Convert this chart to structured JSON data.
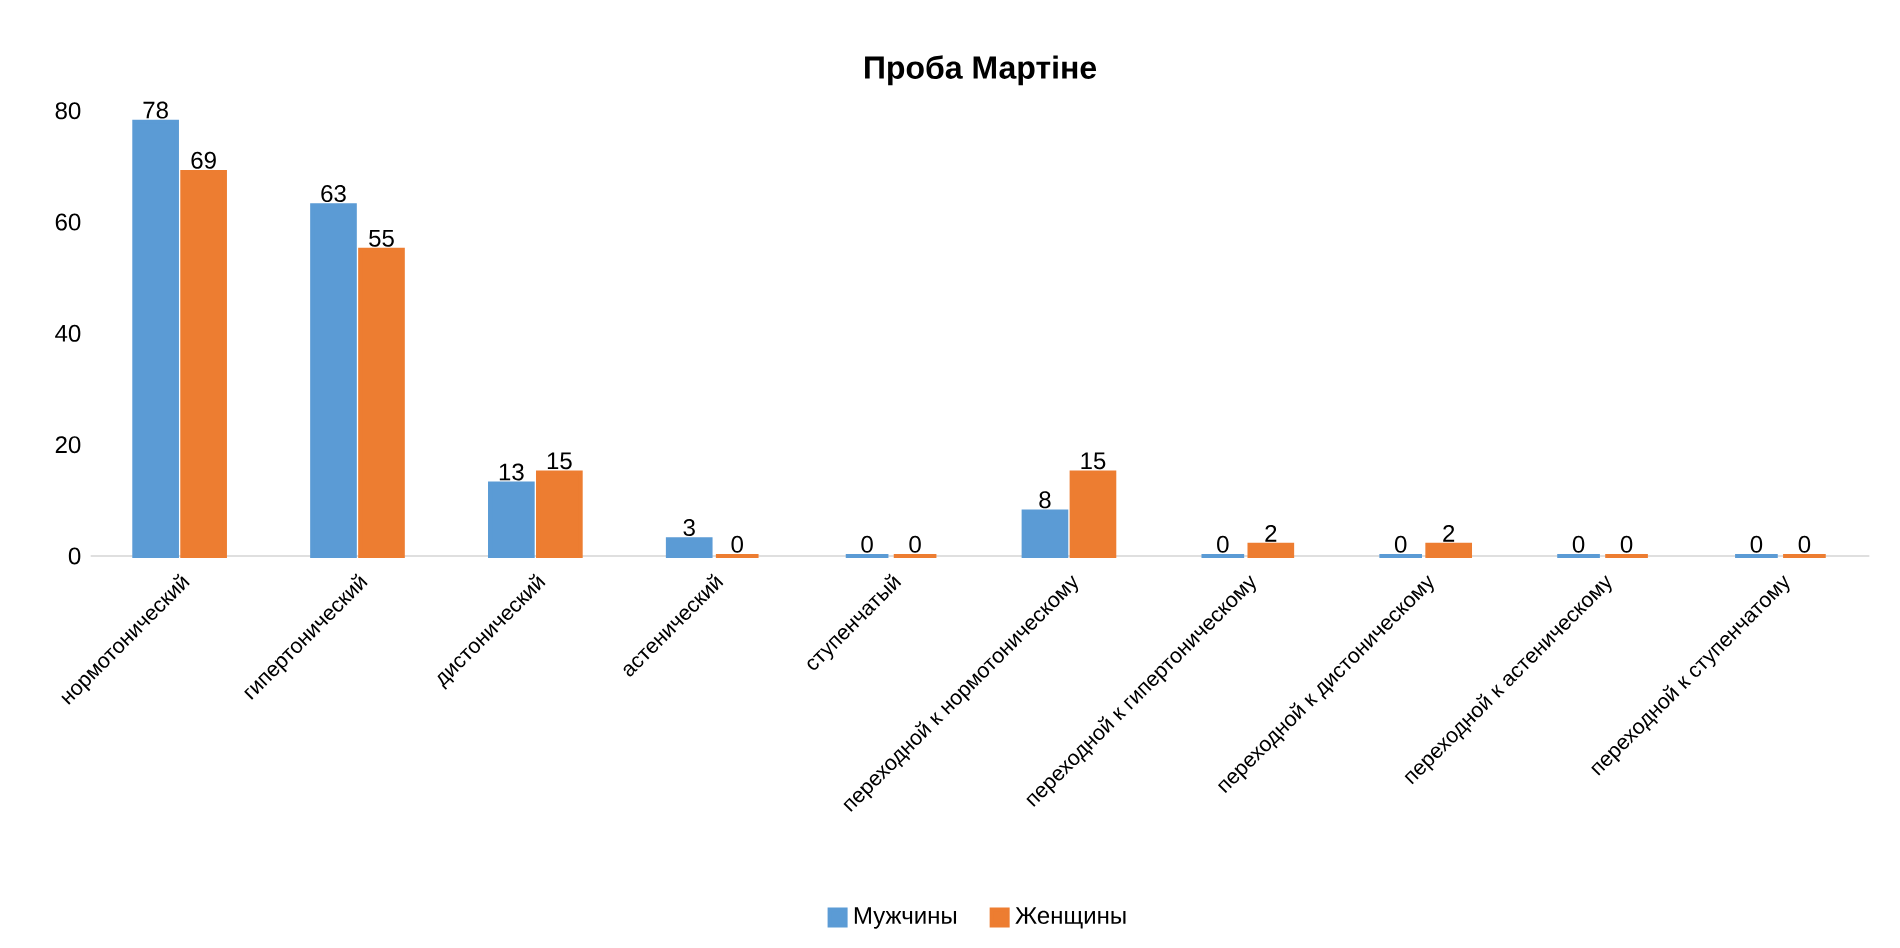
{
  "chart_data": {
    "type": "bar",
    "title": "Проба Мартіне",
    "categories": [
      "нормотонический",
      "гипертонический",
      "дистонический",
      "астенический",
      "ступенчатый",
      "переходной к нормотоническому",
      "переходной к гипертоническому",
      "переходной к дистоническому",
      "переходной к астеническому",
      "переходной к ступенчатому"
    ],
    "series": [
      {
        "name": "Мужчины",
        "color": "#5b9bd5",
        "values": [
          78,
          63,
          13,
          3,
          0,
          8,
          0,
          0,
          0,
          0
        ]
      },
      {
        "name": "Женщины",
        "color": "#ed7d31",
        "values": [
          69,
          55,
          15,
          0,
          0,
          15,
          2,
          2,
          0,
          0
        ]
      }
    ],
    "ylim": [
      0,
      80
    ],
    "yticks": [
      0,
      20,
      40,
      60,
      80
    ],
    "data_labels": true,
    "legend": "bottom"
  }
}
